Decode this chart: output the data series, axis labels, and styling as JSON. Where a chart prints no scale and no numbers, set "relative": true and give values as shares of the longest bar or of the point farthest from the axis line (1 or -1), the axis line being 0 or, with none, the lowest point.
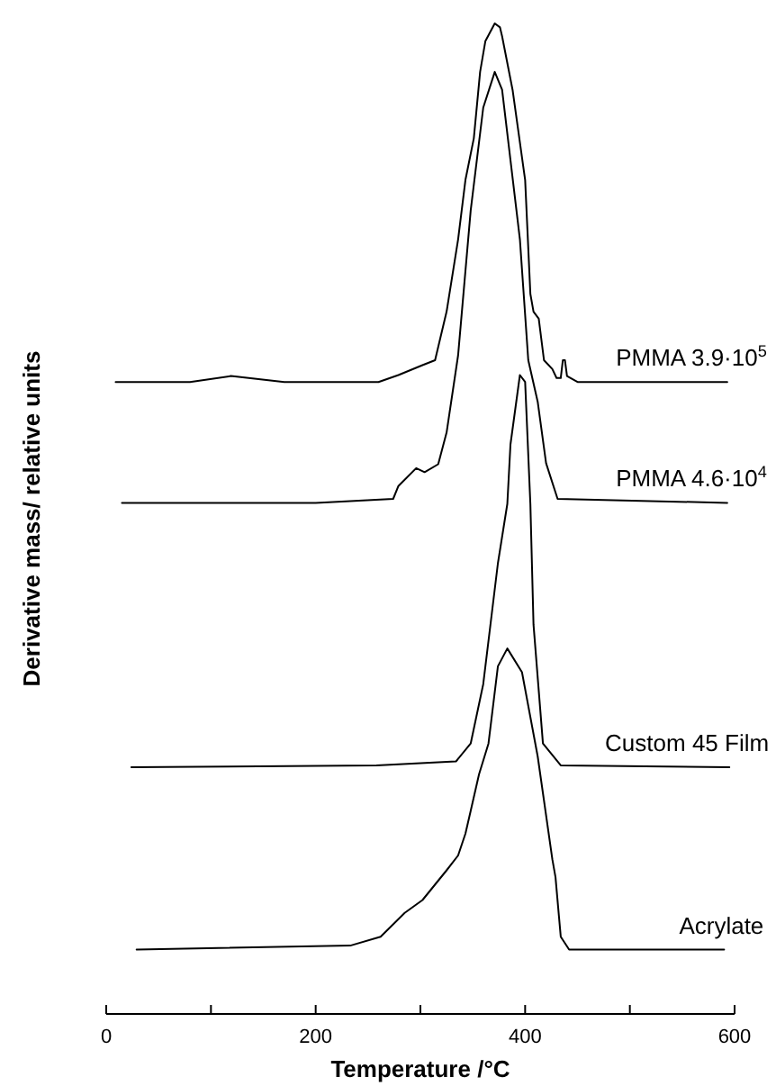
{
  "chart_data": {
    "type": "line",
    "relative": true,
    "xlabel": "Temperature /°C",
    "ylabel": "Derivative mass/ relative units",
    "xlim": [
      0,
      600
    ],
    "xticks": [
      0,
      {
        "value": 100,
        "label": null
      },
      200,
      {
        "value": 300,
        "label": null
      },
      400,
      {
        "value": 500,
        "label": null
      },
      600
    ],
    "line_style": "solid",
    "marker": "none",
    "grid": false,
    "legend": false,
    "series": [
      {
        "name": "PMMA 3.9·10$^{5}$",
        "color": "#000000",
        "x": [
          9,
          80,
          119,
          170,
          260,
          279,
          302,
          314,
          325,
          336,
          343,
          351,
          357,
          362,
          371,
          376,
          378,
          388,
          400,
          405,
          408,
          413,
          418,
          426,
          430,
          434,
          436,
          438,
          440,
          450,
          593
        ],
        "values": [
          0.638,
          0.638,
          0.644,
          0.638,
          0.638,
          0.645,
          0.655,
          0.66,
          0.709,
          0.782,
          0.842,
          0.884,
          0.951,
          0.982,
          1,
          0.996,
          0.987,
          0.933,
          0.842,
          0.727,
          0.709,
          0.702,
          0.66,
          0.651,
          0.642,
          0.642,
          0.66,
          0.66,
          0.644,
          0.638,
          0.638
        ]
      },
      {
        "name": "PMMA 4.6·10$^{4}$",
        "color": "#000000",
        "x": [
          15,
          200,
          274,
          279,
          296,
          304,
          317,
          325,
          336,
          348,
          360,
          371,
          378,
          395,
          403,
          412,
          420,
          431,
          593
        ],
        "values": [
          0.516,
          0.516,
          0.52,
          0.533,
          0.551,
          0.547,
          0.555,
          0.587,
          0.665,
          0.811,
          0.915,
          0.951,
          0.933,
          0.782,
          0.66,
          0.618,
          0.556,
          0.52,
          0.516
        ]
      },
      {
        "name": "Custom 45 Film",
        "color": "#000000",
        "x": [
          24,
          258,
          334,
          348,
          360,
          374,
          383,
          386,
          395,
          400,
          405,
          408,
          417,
          434,
          595
        ],
        "values": [
          0.249,
          0.251,
          0.255,
          0.273,
          0.333,
          0.455,
          0.515,
          0.575,
          0.645,
          0.638,
          0.515,
          0.393,
          0.273,
          0.251,
          0.249
        ]
      },
      {
        "name": "Acrylate",
        "color": "#000000",
        "x": [
          29,
          233,
          262,
          285,
          302,
          325,
          336,
          343,
          348,
          356,
          365,
          374,
          383,
          397,
          412,
          426,
          429,
          434,
          442,
          590
        ],
        "values": [
          0.065,
          0.069,
          0.078,
          0.102,
          0.115,
          0.145,
          0.16,
          0.182,
          0.205,
          0.242,
          0.273,
          0.351,
          0.369,
          0.345,
          0.26,
          0.156,
          0.138,
          0.078,
          0.065,
          0.065
        ]
      }
    ]
  }
}
